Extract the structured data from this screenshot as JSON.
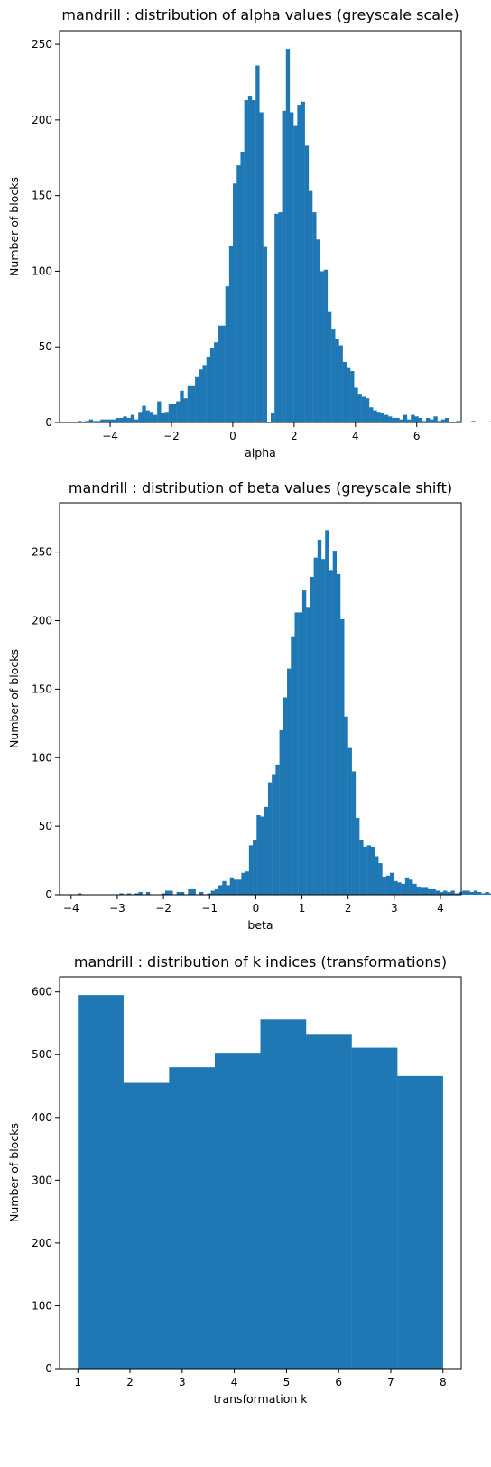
{
  "chart_data": [
    {
      "type": "bar",
      "title": "mandrill : distribution of alpha values (greyscale scale)",
      "xlabel": "alpha",
      "ylabel": "Number of blocks",
      "xlim": [
        -5.65,
        7.45
      ],
      "ylim": [
        0,
        259
      ],
      "xticks": [
        -4,
        -2,
        0,
        2,
        4,
        6
      ],
      "xtick_labels": [
        "−4",
        "−2",
        "0",
        "2",
        "4",
        "6"
      ],
      "yticks": [
        0,
        50,
        100,
        150,
        200,
        250
      ],
      "ytick_labels": [
        "0",
        "50",
        "100",
        "150",
        "200",
        "250"
      ],
      "bin_start": -5.06,
      "bin_width": 0.1235,
      "values": [
        1,
        0,
        1,
        2,
        1,
        1,
        2,
        2,
        2,
        2,
        3,
        3,
        4,
        3,
        5,
        2,
        7,
        11,
        8,
        7,
        5,
        14,
        6,
        7,
        12,
        12,
        14,
        21,
        16,
        24,
        24,
        30,
        35,
        38,
        43,
        49,
        53,
        64,
        64,
        90,
        117,
        158,
        170,
        179,
        213,
        216,
        213,
        236,
        205,
        116,
        0,
        6,
        138,
        139,
        206,
        247,
        205,
        196,
        210,
        212,
        183,
        153,
        139,
        121,
        100,
        101,
        73,
        62,
        55,
        51,
        40,
        36,
        34,
        23,
        19,
        17,
        16,
        10,
        8,
        7,
        6,
        5,
        4,
        3,
        3,
        2,
        5,
        2,
        5,
        4,
        3,
        1,
        3,
        2,
        4,
        1,
        2,
        3,
        0,
        0,
        1,
        0,
        0,
        0,
        1,
        0,
        0,
        0,
        0,
        1,
        1,
        0,
        0,
        0,
        0,
        0,
        0,
        0,
        1,
        0,
        0,
        0,
        1,
        0,
        0,
        0,
        0,
        1
      ],
      "grid": false,
      "bar_color": "#1f77b4"
    },
    {
      "type": "bar",
      "title": "mandrill : distribution of beta values (greyscale shift)",
      "xlabel": "beta",
      "ylabel": "Number of blocks",
      "xlim": [
        -4.25,
        4.45
      ],
      "ylim": [
        0,
        286
      ],
      "xticks": [
        -4,
        -3,
        -2,
        -1,
        0,
        1,
        2,
        3,
        4
      ],
      "xtick_labels": [
        "−4",
        "−3",
        "−2",
        "−1",
        "0",
        "1",
        "2",
        "3",
        "4"
      ],
      "yticks": [
        0,
        50,
        100,
        150,
        200,
        250
      ],
      "ytick_labels": [
        "0",
        "50",
        "100",
        "150",
        "200",
        "250"
      ],
      "bin_start": -3.86,
      "bin_width": 0.0825,
      "values": [
        1,
        0,
        0,
        0,
        0,
        0,
        0,
        0,
        0,
        0,
        0,
        1,
        0,
        1,
        0,
        1,
        2,
        0,
        2,
        0,
        0,
        0,
        1,
        3,
        3,
        0,
        2,
        2,
        0,
        4,
        4,
        0,
        2,
        0,
        1,
        3,
        4,
        7,
        10,
        7,
        12,
        11,
        11,
        16,
        17,
        36,
        40,
        58,
        57,
        64,
        82,
        88,
        95,
        120,
        144,
        165,
        188,
        206,
        206,
        222,
        210,
        232,
        246,
        259,
        245,
        266,
        237,
        251,
        234,
        201,
        130,
        107,
        90,
        56,
        40,
        35,
        36,
        35,
        28,
        23,
        13,
        14,
        16,
        10,
        9,
        8,
        12,
        11,
        8,
        6,
        5,
        5,
        4,
        4,
        3,
        2,
        3,
        2,
        3,
        1,
        2,
        3,
        3,
        2,
        3,
        2,
        1,
        2,
        1,
        1,
        1
      ],
      "grid": false,
      "bar_color": "#1f77b4"
    },
    {
      "type": "bar",
      "title": "mandrill : distribution of k indices (transformations)",
      "xlabel": "transformation k",
      "ylabel": "Number of blocks",
      "xlim": [
        0.65,
        8.35
      ],
      "ylim": [
        0,
        624
      ],
      "xticks": [
        1,
        2,
        3,
        4,
        5,
        6,
        7,
        8
      ],
      "xtick_labels": [
        "1",
        "2",
        "3",
        "4",
        "5",
        "6",
        "7",
        "8"
      ],
      "yticks": [
        0,
        100,
        200,
        300,
        400,
        500,
        600
      ],
      "ytick_labels": [
        "0",
        "100",
        "200",
        "300",
        "400",
        "500",
        "600"
      ],
      "bin_start": 1,
      "bin_width": 0.875,
      "values": [
        595,
        455,
        480,
        503,
        556,
        533,
        511,
        466
      ],
      "grid": false,
      "bar_color": "#1f77b4"
    }
  ]
}
